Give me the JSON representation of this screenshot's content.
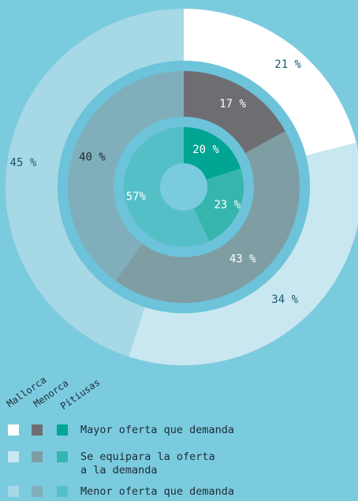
{
  "chart_data": {
    "type": "pie",
    "variant": "concentric-donut",
    "rings": [
      {
        "name": "Mallorca",
        "values": [
          21,
          34,
          45
        ],
        "labels": [
          "21 %",
          "34 %",
          "45 %"
        ],
        "colors": [
          "#ffffff",
          "#c8e7f0",
          "#a6d8e6"
        ]
      },
      {
        "name": "Menorca",
        "values": [
          17,
          43,
          40
        ],
        "labels": [
          "17 %",
          "43 %",
          "40 %"
        ],
        "colors": [
          "#6e6e72",
          "#7e9ea3",
          "#81aebb"
        ]
      },
      {
        "name": "Pitiusas",
        "values": [
          20,
          23,
          57
        ],
        "labels": [
          "20 %",
          "23 %",
          "57%"
        ],
        "colors": [
          "#00a593",
          "#35b5ad",
          "#55bfc7"
        ]
      }
    ],
    "categories": [
      "Mayor oferta que demanda",
      "Se equipara la oferta\na la demanda",
      "Menor oferta que demanda"
    ],
    "label_colors": {
      "Mallorca": "#1a5a72",
      "Menorca_dark": "#ffffff",
      "Menorca_light": "#1c2b35",
      "Pitiusas": "#ffffff"
    }
  },
  "legend": {
    "regions": [
      "Mallorca",
      "Menorca",
      "Pitiusas"
    ],
    "items": [
      "Mayor oferta que demanda",
      "Se equipara la oferta\na la demanda",
      "Menor oferta que demanda"
    ]
  }
}
